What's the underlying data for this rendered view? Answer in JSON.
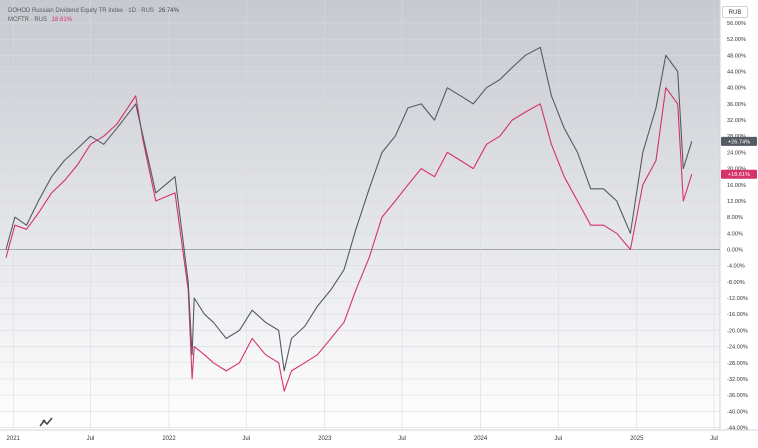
{
  "legend": {
    "series1_label": "DOHOD Russian Dividend Equity TR Index · 1D · RUS",
    "series1_value": "26.74%",
    "series2_label": "MCFTR · RUS",
    "series2_value": "18.61%"
  },
  "currency_button": "RUB",
  "chart_data": {
    "type": "line",
    "ylim": [
      -44,
      56
    ],
    "ytick_values": [
      56,
      52,
      48,
      44,
      40,
      36,
      32,
      28,
      24,
      20,
      16,
      12,
      8,
      4,
      0,
      -4,
      -8,
      -12,
      -16,
      -20,
      -24,
      -28,
      -32,
      -36,
      -40,
      -44
    ],
    "ytick_labels": [
      "56.00%",
      "52.00%",
      "48.00%",
      "44.00%",
      "40.00%",
      "36.00%",
      "32.00%",
      "28.00%",
      "24.00%",
      "20.00%",
      "16.00%",
      "12.00%",
      "8.00%",
      "4.00%",
      "0.00%",
      "-4.00%",
      "-8.00%",
      "-12.00%",
      "-16.00%",
      "-20.00%",
      "-24.00%",
      "-28.00%",
      "-32.00%",
      "-36.00%",
      "-40.00%",
      "-44.00%"
    ],
    "x_range": [
      "2020-12-01",
      "2025-07-15"
    ],
    "xticks": [
      {
        "date": "2021-01-01",
        "label": "2021"
      },
      {
        "date": "2021-07-01",
        "label": "Jul"
      },
      {
        "date": "2022-01-01",
        "label": "2022"
      },
      {
        "date": "2022-07-01",
        "label": "Jul"
      },
      {
        "date": "2023-01-01",
        "label": "2023"
      },
      {
        "date": "2023-07-01",
        "label": "Jul"
      },
      {
        "date": "2024-01-01",
        "label": "2024"
      },
      {
        "date": "2024-07-01",
        "label": "Jul"
      },
      {
        "date": "2025-01-01",
        "label": "2025"
      },
      {
        "date": "2025-07-01",
        "label": "Jul"
      }
    ],
    "last_value_labels": [
      "+26.74%",
      "+18.61%"
    ],
    "colors": {
      "series1": "#555b63",
      "series2": "#d6326b",
      "zero_line": "#8a8f99",
      "grid": "#d8dbe0"
    },
    "series": [
      {
        "name": "DOHOD Russian Dividend Equity TR Index",
        "x": [
          "2020-12-15",
          "2021-01-05",
          "2021-02-01",
          "2021-03-01",
          "2021-04-01",
          "2021-05-01",
          "2021-06-01",
          "2021-07-01",
          "2021-08-01",
          "2021-09-01",
          "2021-10-15",
          "2021-11-01",
          "2021-12-01",
          "2022-01-15",
          "2022-02-15",
          "2022-02-24",
          "2022-03-01",
          "2022-03-25",
          "2022-04-15",
          "2022-05-15",
          "2022-06-15",
          "2022-07-15",
          "2022-08-15",
          "2022-09-15",
          "2022-09-28",
          "2022-10-15",
          "2022-11-15",
          "2022-12-15",
          "2023-01-15",
          "2023-02-15",
          "2023-03-15",
          "2023-04-15",
          "2023-05-15",
          "2023-06-15",
          "2023-07-15",
          "2023-08-15",
          "2023-09-15",
          "2023-10-15",
          "2023-11-15",
          "2023-12-15",
          "2024-01-15",
          "2024-02-15",
          "2024-03-15",
          "2024-04-15",
          "2024-05-20",
          "2024-06-15",
          "2024-07-15",
          "2024-08-15",
          "2024-09-15",
          "2024-10-15",
          "2024-11-15",
          "2024-12-17",
          "2025-01-15",
          "2025-02-15",
          "2025-03-10",
          "2025-04-07",
          "2025-04-20",
          "2025-05-10"
        ],
        "values": [
          0,
          8,
          6,
          12,
          18,
          22,
          25,
          28,
          26,
          30,
          36,
          28,
          14,
          18,
          -8,
          -26,
          -12,
          -16,
          -18,
          -22,
          -20,
          -15,
          -18,
          -20,
          -30,
          -22,
          -19,
          -14,
          -10,
          -5,
          5,
          15,
          24,
          28,
          35,
          36,
          32,
          40,
          38,
          36,
          40,
          42,
          45,
          48,
          50,
          38,
          30,
          24,
          15,
          15,
          12,
          4,
          24,
          35,
          48,
          44,
          20,
          26.74
        ]
      },
      {
        "name": "MCFTR",
        "x": [
          "2020-12-15",
          "2021-01-05",
          "2021-02-01",
          "2021-03-01",
          "2021-04-01",
          "2021-05-01",
          "2021-06-01",
          "2021-07-01",
          "2021-08-01",
          "2021-09-01",
          "2021-10-15",
          "2021-11-01",
          "2021-12-01",
          "2022-01-15",
          "2022-02-15",
          "2022-02-24",
          "2022-03-01",
          "2022-03-25",
          "2022-04-15",
          "2022-05-15",
          "2022-06-15",
          "2022-07-15",
          "2022-08-15",
          "2022-09-15",
          "2022-09-28",
          "2022-10-15",
          "2022-11-15",
          "2022-12-15",
          "2023-01-15",
          "2023-02-15",
          "2023-03-15",
          "2023-04-15",
          "2023-05-15",
          "2023-06-15",
          "2023-07-15",
          "2023-08-15",
          "2023-09-15",
          "2023-10-15",
          "2023-11-15",
          "2023-12-15",
          "2024-01-15",
          "2024-02-15",
          "2024-03-15",
          "2024-04-15",
          "2024-05-20",
          "2024-06-15",
          "2024-07-15",
          "2024-08-15",
          "2024-09-15",
          "2024-10-15",
          "2024-11-15",
          "2024-12-17",
          "2025-01-15",
          "2025-02-15",
          "2025-03-10",
          "2025-04-07",
          "2025-04-20",
          "2025-05-10"
        ],
        "values": [
          -2,
          6,
          5,
          9,
          14,
          17,
          21,
          26,
          28,
          31,
          38,
          27,
          12,
          14,
          -10,
          -32,
          -24,
          -26,
          -28,
          -30,
          -28,
          -22,
          -26,
          -28,
          -35,
          -30,
          -28,
          -26,
          -22,
          -18,
          -10,
          -2,
          8,
          12,
          16,
          20,
          18,
          24,
          22,
          20,
          26,
          28,
          32,
          34,
          36,
          26,
          18,
          12,
          6,
          6,
          4,
          0,
          16,
          22,
          40,
          36,
          12,
          18.61
        ]
      }
    ]
  }
}
